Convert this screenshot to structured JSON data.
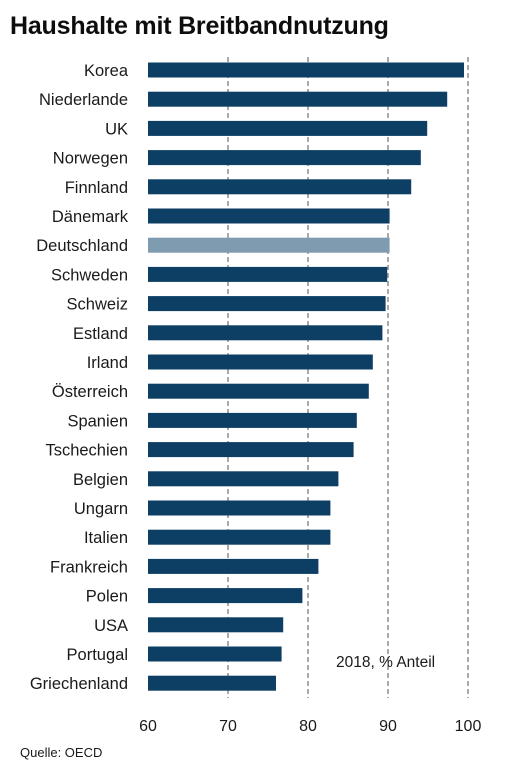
{
  "title": "Haushalte mit Breitbandnutzung",
  "annotation": "2018, % Anteil",
  "source": "Quelle: OECD",
  "colors": {
    "bar": "#0d3e63",
    "highlight": "#7f9bb0",
    "grid": "#555555"
  },
  "chart_data": {
    "type": "bar",
    "orientation": "horizontal",
    "title": "Haushalte mit Breitbandnutzung",
    "annotation": "2018, % Anteil",
    "categories": [
      "Korea",
      "Niederlande",
      "UK",
      "Norwegen",
      "Finnland",
      "Dänemark",
      "Deutschland",
      "Schweden",
      "Schweiz",
      "Estland",
      "Irland",
      "Österreich",
      "Spanien",
      "Tschechien",
      "Belgien",
      "Ungarn",
      "Italien",
      "Frankreich",
      "Polen",
      "USA",
      "Portugal",
      "Griechenland"
    ],
    "values": [
      99.5,
      97.4,
      94.9,
      94.1,
      92.9,
      90.2,
      90.2,
      89.9,
      89.7,
      89.3,
      88.1,
      87.6,
      86.1,
      85.7,
      83.8,
      82.8,
      82.8,
      81.3,
      79.3,
      76.9,
      76.7,
      76.0
    ],
    "highlight": "Deutschland",
    "xlim": [
      60,
      100
    ],
    "xticks": [
      60,
      70,
      80,
      90,
      100
    ],
    "grid": "vertical dashed",
    "legend": "none"
  }
}
